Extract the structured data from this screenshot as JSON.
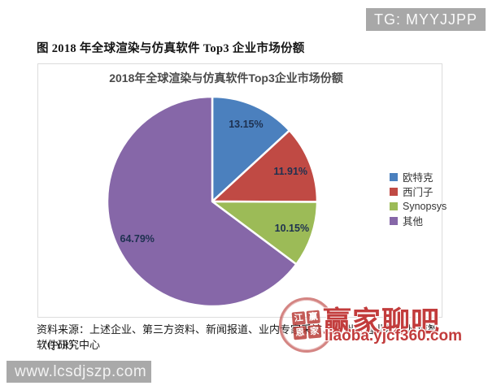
{
  "overlays": {
    "tg_badge": "TG: MYYJJPP",
    "site_badge": "www.lcsdjszp.com",
    "watermark_title": "赢家聊吧",
    "watermark_url": "liaoba.yjcf360.com",
    "seal_chars": [
      "江",
      "赢",
      "恩",
      "家"
    ],
    "badge_gray": "#a8a8a8",
    "watermark_red": "#c23c3c"
  },
  "figure": {
    "caption": "图 2018 年全球渲染与仿真软件 Top3 企业市场份额",
    "source_line1": "资料来源：上述企业、第三方资料、新闻报道、业内专家采访、恒州博智业和恒州博智（QYR）",
    "source_line2": "软件研究中心"
  },
  "chart_data": {
    "type": "pie",
    "title": "2018年全球渲染与仿真软件Top3企业市场份额",
    "categories": [
      "欧特克",
      "西门子",
      "Synopsys",
      "其他"
    ],
    "values": [
      13.15,
      11.91,
      10.15,
      64.79
    ],
    "labels": [
      "13.15%",
      "11.91%",
      "10.15%",
      "64.79%"
    ],
    "colors": [
      "#4b80be",
      "#c04a44",
      "#9cbb57",
      "#8667a8"
    ],
    "label_color": "#1e3150",
    "slice_border_color": "#ffffff",
    "start_angle_deg": 0,
    "direction": "clockwise",
    "legend_position": "right"
  }
}
